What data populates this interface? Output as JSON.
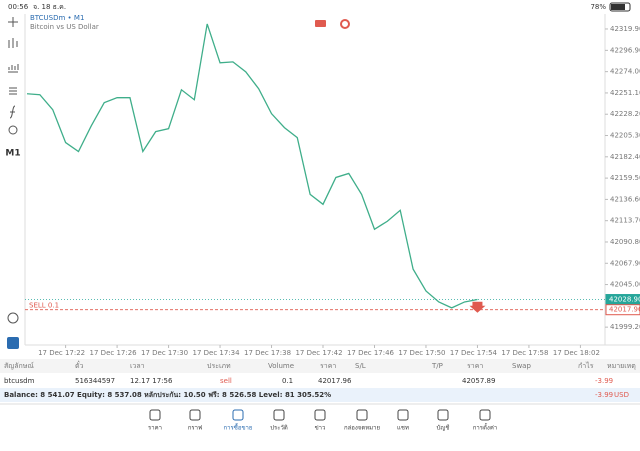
{
  "status_bar": {
    "time": "00:56",
    "date": "จ. 18 ธ.ค.",
    "battery": "78%"
  },
  "toolbar": {
    "timeframe": "M1"
  },
  "chart_data": {
    "type": "line",
    "title": "BTCUSDm • M1",
    "subtitle": "Bitcoin vs US Dollar",
    "x": [
      "17 Dec 17:19",
      "17 Dec 17:20",
      "17 Dec 17:21",
      "17 Dec 17:22",
      "17 Dec 17:23",
      "17 Dec 17:24",
      "17 Dec 17:25",
      "17 Dec 17:26",
      "17 Dec 17:27",
      "17 Dec 17:28",
      "17 Dec 17:29",
      "17 Dec 17:30",
      "17 Dec 17:31",
      "17 Dec 17:32",
      "17 Dec 17:33",
      "17 Dec 17:34",
      "17 Dec 17:35",
      "17 Dec 17:36",
      "17 Dec 17:37",
      "17 Dec 17:38",
      "17 Dec 17:39",
      "17 Dec 17:40",
      "17 Dec 17:41",
      "17 Dec 17:42",
      "17 Dec 17:43",
      "17 Dec 17:44",
      "17 Dec 17:45",
      "17 Dec 17:46",
      "17 Dec 17:47",
      "17 Dec 17:48",
      "17 Dec 17:49",
      "17 Dec 17:50",
      "17 Dec 17:51",
      "17 Dec 17:52",
      "17 Dec 17:53",
      "17 Dec 17:54"
    ],
    "series": [
      {
        "color": "#3fae8a",
        "values": [
          42250.2,
          42249.2,
          42233.1,
          42197.7,
          42188.1,
          42215.9,
          42240.6,
          42246.0,
          42246.0,
          42188.1,
          42209.5,
          42212.7,
          42254.5,
          42243.8,
          42325.3,
          42283.5,
          42284.5,
          42273.8,
          42255.6,
          42228.8,
          42213.8,
          42203.1,
          42142.0,
          42131.3,
          42160.2,
          42164.5,
          42142.0,
          42104.5,
          42113.1,
          42124.9,
          42061.6,
          42038.1,
          42026.3,
          42019.9,
          42026.3,
          42028.9
        ]
      }
    ],
    "ylim": [
      41980,
      42336
    ],
    "yticks": [
      {
        "value": 42319.9,
        "label": "42319.90"
      },
      {
        "value": 42296.9,
        "label": "42296.90"
      },
      {
        "value": 42274,
        "label": "42274.00"
      },
      {
        "value": 42251.1,
        "label": "42251.10"
      },
      {
        "value": 42228.2,
        "label": "42228.20"
      },
      {
        "value": 42205.3,
        "label": "42205.30"
      },
      {
        "value": 42182.4,
        "label": "42182.40"
      },
      {
        "value": 42159.5,
        "label": "42159.50"
      },
      {
        "value": 42136.6,
        "label": "42136.60"
      },
      {
        "value": 42113.7,
        "label": "42113.70"
      },
      {
        "value": 42090.8,
        "label": "42090.80"
      },
      {
        "value": 42067.9,
        "label": "42067.90"
      },
      {
        "value": 42045,
        "label": "42045.00"
      },
      {
        "value": 41999.2,
        "label": "41999.20"
      }
    ],
    "xticks": [
      "17 Dec 17:22",
      "17 Dec 17:26",
      "17 Dec 17:30",
      "17 Dec 17:34",
      "17 Dec 17:38",
      "17 Dec 17:42",
      "17 Dec 17:46",
      "17 Dec 17:50",
      "17 Dec 17:54",
      "17 Dec 17:58",
      "17 Dec 18:02"
    ],
    "price_lines": [
      {
        "value": 42028.9,
        "label": "42028.90",
        "color": "#26a69a"
      },
      {
        "value": 42017.96,
        "label": "42017.96",
        "name": "SELL 0.1",
        "color": "#e05a4f"
      }
    ]
  },
  "positions": {
    "headers": [
      "สัญลักษณ์",
      "ตั๋ว",
      "เวลา",
      "ประเภท",
      "Volume",
      "ราคา",
      "S/L",
      "T/P",
      "ราคา",
      "Swap",
      "กำไร",
      "หมายเหตุ"
    ],
    "row": {
      "symbol": "btcusdm",
      "ticket": "516344597",
      "time": "12.17 17:56",
      "type": "sell",
      "volume": "0.1",
      "open_price": "42017.96",
      "price": "42057.89",
      "profit": "-3.99"
    },
    "summary": "Balance: 8 541.07 Equity: 8 537.08 หลักประกัน: 10.50 ฟรี: 8 526.58 Level: 81 305.52%",
    "total": "-3.99",
    "currency": "USD"
  },
  "nav": [
    "ราคา",
    "กราฟ",
    "การซื้อขาย",
    "ประวัติ",
    "ข่าว",
    "กล่องจดหมาย",
    "แชท",
    "บัญชี",
    "การตั้งค่า"
  ]
}
